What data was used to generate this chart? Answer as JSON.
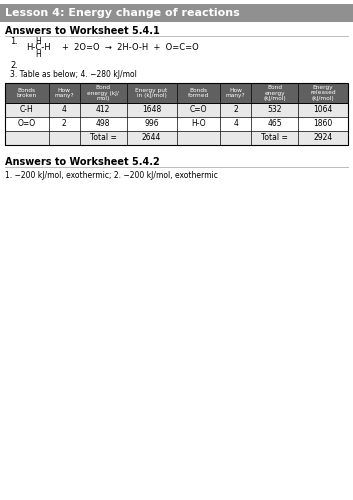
{
  "title": "Lesson 4: Energy change of reactions",
  "header_bg": "#909090",
  "title_color": "#ffffff",
  "section1_header": "Answers to Worksheet 5.4.1",
  "item3_text": "3. Table as below; 4. −280 kJ/mol",
  "table_headers": [
    "Bonds\nbroken",
    "How\nmany?",
    "Bond\nenergy (kJ/\nmol)",
    "Energy put\nin (kJ/mol)",
    "Bonds\nformed",
    "How\nmany?",
    "Bond\nenergy\n(kJ/mol)",
    "Energy\nreleased\n(kJ/mol)"
  ],
  "table_data": [
    [
      "C-H",
      "4",
      "412",
      "1648",
      "C=O",
      "2",
      "532",
      "1064"
    ],
    [
      "O=O",
      "2",
      "498",
      "996",
      "H-O",
      "4",
      "465",
      "1860"
    ],
    [
      "",
      "",
      "Total =",
      "2644",
      "",
      "",
      "Total =",
      "2924"
    ]
  ],
  "section2_header": "Answers to Worksheet 5.4.2",
  "section2_text": "1. −200 kJ/mol, exothermic; 2. −200 kJ/mol, exothermic",
  "bg_color": "#ffffff",
  "table_header_bg": "#606060",
  "table_row0_bg": "#e8e8e8",
  "table_row1_bg": "#ffffff",
  "table_row2_bg": "#e8e8e8",
  "divider_color": "#bbbbbb",
  "col_widths_rel": [
    28,
    20,
    30,
    32,
    28,
    20,
    30,
    32
  ]
}
